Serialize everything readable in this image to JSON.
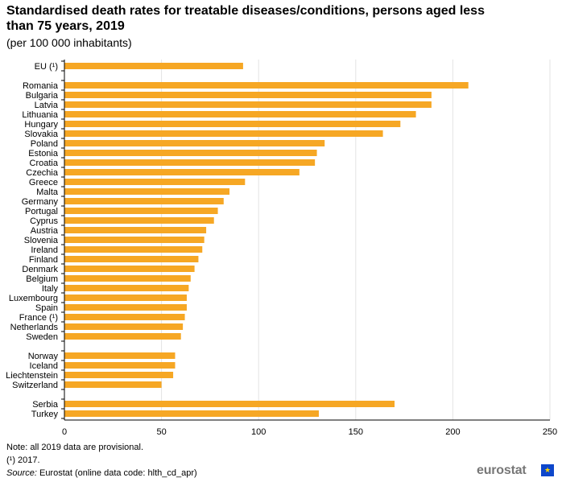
{
  "header": {
    "title": "Standardised death rates for treatable diseases/conditions, persons aged less than 75 years, 2019",
    "subtitle": "(per 100 000 inhabitants)"
  },
  "chart_data": {
    "type": "bar",
    "orientation": "horizontal",
    "categories": [
      "EU (¹)",
      "Romania",
      "Bulgaria",
      "Latvia",
      "Lithuania",
      "Hungary",
      "Slovakia",
      "Poland",
      "Estonia",
      "Croatia",
      "Czechia",
      "Greece",
      "Malta",
      "Germany",
      "Portugal",
      "Cyprus",
      "Austria",
      "Slovenia",
      "Ireland",
      "Finland",
      "Denmark",
      "Belgium",
      "Italy",
      "Luxembourg",
      "Spain",
      "France (¹)",
      "Netherlands",
      "Sweden",
      "Norway",
      "Iceland",
      "Liechtenstein",
      "Switzerland",
      "Serbia",
      "Turkey"
    ],
    "groups": [
      1,
      27,
      4,
      2
    ],
    "values": [
      92,
      208,
      189,
      189,
      181,
      173,
      164,
      134,
      130,
      129,
      121,
      93,
      85,
      82,
      79,
      77,
      73,
      72,
      71,
      69,
      67,
      65,
      64,
      63,
      63,
      62,
      61,
      60,
      57,
      57,
      56,
      50,
      170,
      131
    ],
    "xlim": [
      0,
      250
    ],
    "xticks": [
      0,
      50,
      100,
      150,
      200,
      250
    ],
    "xlabel": "",
    "ylabel": "",
    "grid": "vertical",
    "bar_color": "#f6a724"
  },
  "footer": {
    "note": "Note: all 2019 data are provisional.",
    "footnote": "(¹) 2017.",
    "source_label": "Source:",
    "source_text": " Eurostat (online data code: hlth_cd_apr)"
  },
  "logo": {
    "text": "eurostat",
    "flag_icon": "eu-flag-icon"
  }
}
